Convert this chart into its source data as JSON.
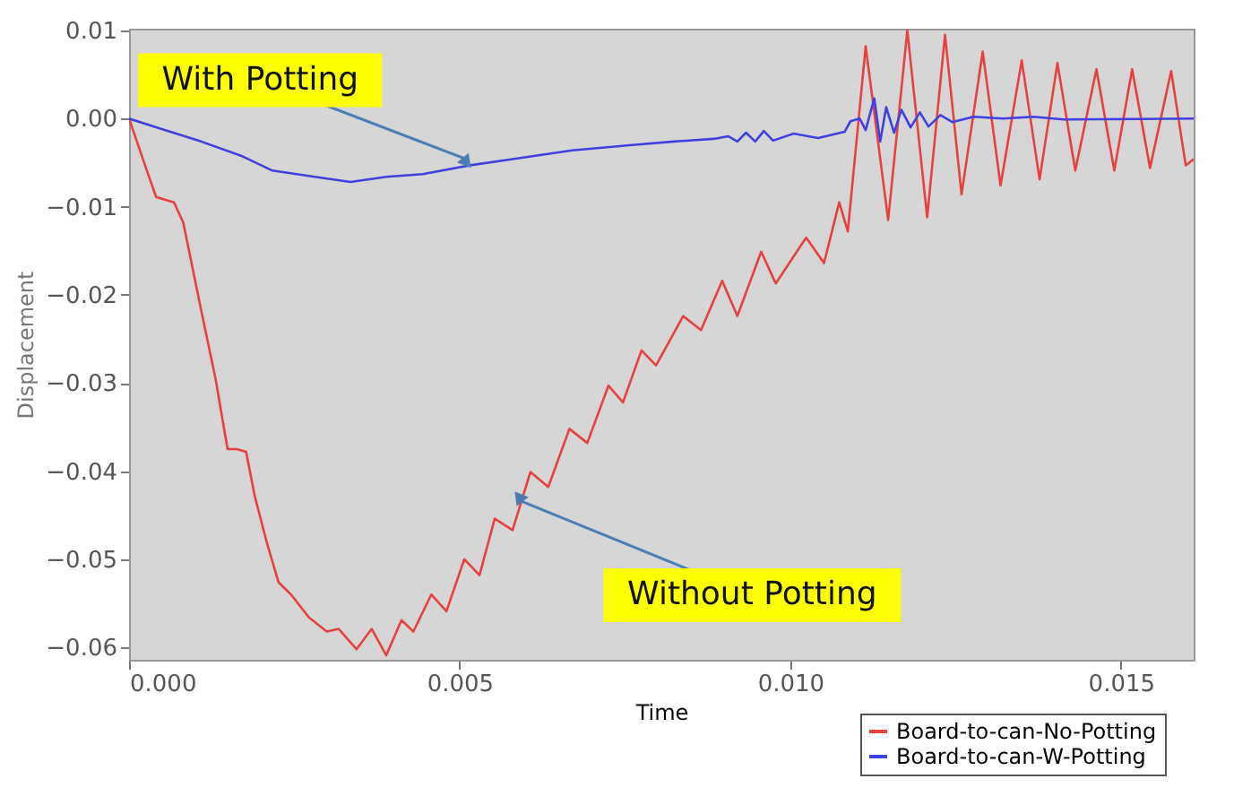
{
  "chart_data": {
    "type": "line",
    "xlabel": "Time",
    "ylabel": "Displacement",
    "xlim": [
      0,
      0.0161
    ],
    "ylim": [
      -0.0614,
      0.0102
    ],
    "xticks": [
      {
        "value": 0,
        "label": "0.000"
      },
      {
        "value": 0.005,
        "label": "0.005"
      },
      {
        "value": 0.01,
        "label": "0.010"
      },
      {
        "value": 0.015,
        "label": "0.015"
      }
    ],
    "yticks": [
      0.01,
      {
        "value": 0,
        "label": "0.00"
      },
      -0.01,
      -0.02,
      -0.03,
      -0.04,
      -0.05,
      -0.06
    ],
    "grid": false,
    "legend": "bottom right",
    "line_style": "solid",
    "series": [
      {
        "name": "Board-to-can-No-Potting",
        "color": "#e8403f",
        "x": [
          0,
          0.00027,
          0.00041,
          0.00054,
          0.00068,
          0.00082,
          0.00109,
          0.00131,
          0.00149,
          0.00163,
          0.00177,
          0.0019,
          0.00208,
          0.00226,
          0.00245,
          0.00272,
          0.00299,
          0.00317,
          0.00344,
          0.00367,
          0.00389,
          0.00412,
          0.0043,
          0.00457,
          0.0048,
          0.00507,
          0.0053,
          0.00553,
          0.0058,
          0.00607,
          0.00634,
          0.00666,
          0.00693,
          0.00725,
          0.00747,
          0.00775,
          0.00797,
          0.00838,
          0.00865,
          0.00897,
          0.0092,
          0.00956,
          0.00978,
          0.01024,
          0.01051,
          0.01074,
          0.01087,
          0.01114,
          0.01148,
          0.01177,
          0.01207,
          0.01234,
          0.01259,
          0.01291,
          0.01318,
          0.0135,
          0.01377,
          0.01404,
          0.01431,
          0.01463,
          0.0149,
          0.01517,
          0.01544,
          0.01576,
          0.01598,
          0.0161
        ],
        "values": [
          0,
          -0.0059,
          -0.0089,
          -0.0092,
          -0.0095,
          -0.0118,
          -0.0217,
          -0.0296,
          -0.0375,
          -0.0375,
          -0.0378,
          -0.0428,
          -0.048,
          -0.0526,
          -0.054,
          -0.0566,
          -0.0582,
          -0.0579,
          -0.0602,
          -0.0579,
          -0.0609,
          -0.0569,
          -0.0582,
          -0.054,
          -0.0559,
          -0.05,
          -0.0518,
          -0.0454,
          -0.0467,
          -0.0401,
          -0.0418,
          -0.0352,
          -0.0368,
          -0.0303,
          -0.0322,
          -0.0263,
          -0.028,
          -0.0224,
          -0.024,
          -0.0184,
          -0.0224,
          -0.0151,
          -0.0187,
          -0.0135,
          -0.0164,
          -0.0095,
          -0.0128,
          0.0082,
          -0.0115,
          0.01,
          -0.0112,
          0.0095,
          -0.0086,
          0.0076,
          -0.0076,
          0.0066,
          -0.0069,
          0.0063,
          -0.0059,
          0.0056,
          -0.0059,
          0.0056,
          -0.0056,
          0.0054,
          -0.0053,
          -0.0046
        ]
      },
      {
        "name": "Board-to-can-W-Potting",
        "color": "#4040e0",
        "x": [
          0,
          0.00054,
          0.00109,
          0.00172,
          0.00217,
          0.00281,
          0.00335,
          0.00389,
          0.00444,
          0.00516,
          0.0058,
          0.0067,
          0.00761,
          0.00824,
          0.00884,
          0.00906,
          0.0092,
          0.00933,
          0.00947,
          0.0096,
          0.00974,
          0.01005,
          0.01042,
          0.01082,
          0.01091,
          0.01105,
          0.01114,
          0.01127,
          0.01136,
          0.01145,
          0.01157,
          0.01168,
          0.01182,
          0.01196,
          0.01209,
          0.01227,
          0.01245,
          0.01277,
          0.01322,
          0.01368,
          0.01413,
          0.0161
        ],
        "values": [
          0,
          -0.0013,
          -0.0026,
          -0.0043,
          -0.0059,
          -0.0066,
          -0.0072,
          -0.0066,
          -0.0063,
          -0.0053,
          -0.0046,
          -0.0036,
          -0.003,
          -0.0026,
          -0.0023,
          -0.002,
          -0.0026,
          -0.0016,
          -0.0026,
          -0.0014,
          -0.0025,
          -0.0017,
          -0.0022,
          -0.0015,
          -0.0003,
          0,
          -0.0013,
          0.0023,
          -0.0026,
          0.0013,
          -0.0016,
          0.001,
          -0.001,
          0.0007,
          -0.0009,
          0.0004,
          -0.0004,
          0.0002,
          0,
          0.0002,
          -0.0001,
          0
        ]
      }
    ],
    "annotations": [
      {
        "text": "With Potting",
        "x": 0.0051,
        "y": -0.0046
      },
      {
        "text": "Without Potting",
        "x": 0.0059,
        "y": -0.0433
      }
    ]
  }
}
